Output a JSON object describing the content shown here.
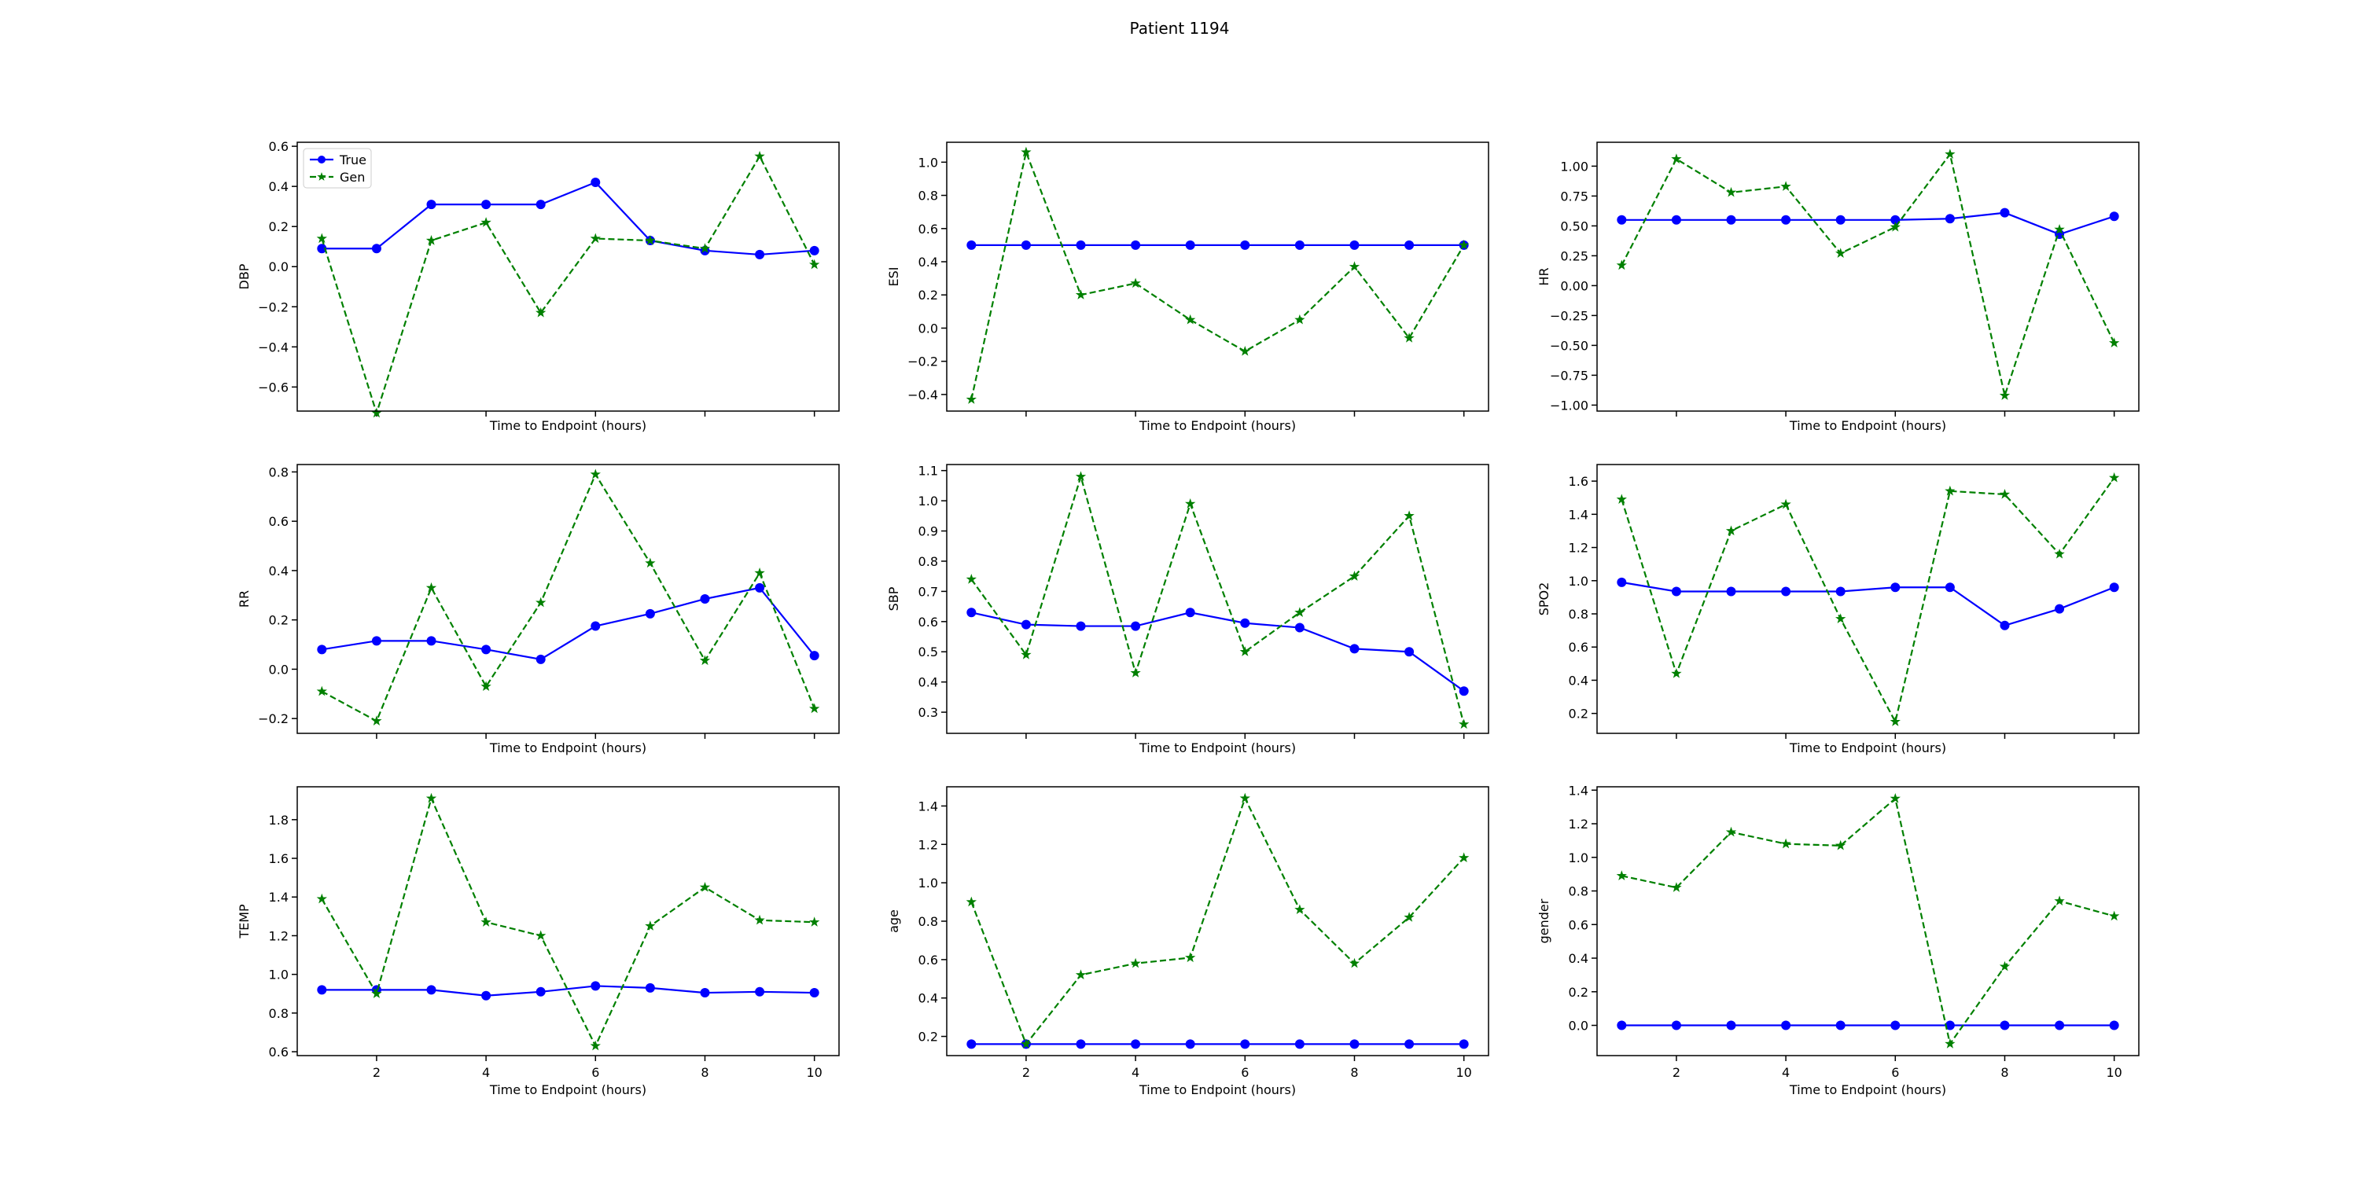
{
  "figure": {
    "title": "Patient 1194"
  },
  "chart_data": [
    {
      "type": "line",
      "ylabel": "DBP",
      "xlabel": "Time to Endpoint (hours)",
      "x": [
        1,
        2,
        3,
        4,
        5,
        6,
        7,
        8,
        9,
        10
      ],
      "xticks": [
        "2",
        "4",
        "6",
        "8",
        "10"
      ],
      "yticks": [
        "−0.6",
        "−0.4",
        "−0.2",
        "0.0",
        "0.2",
        "0.4",
        "0.6"
      ],
      "ylim": [
        -0.72,
        0.62
      ],
      "legend": {
        "position": "top-left",
        "entries": [
          "True",
          "Gen"
        ]
      },
      "series": [
        {
          "name": "True",
          "color": "#0000ff",
          "values": [
            0.09,
            0.09,
            0.31,
            0.31,
            0.31,
            0.42,
            0.13,
            0.08,
            0.06,
            0.08
          ]
        },
        {
          "name": "Gen",
          "color": "#008000",
          "values": [
            0.14,
            -0.73,
            0.13,
            0.22,
            -0.23,
            0.14,
            0.13,
            0.09,
            0.55,
            0.01
          ]
        }
      ]
    },
    {
      "type": "line",
      "ylabel": "ESI",
      "xlabel": "Time to Endpoint (hours)",
      "x": [
        1,
        2,
        3,
        4,
        5,
        6,
        7,
        8,
        9,
        10
      ],
      "xticks": [
        "2",
        "4",
        "6",
        "8",
        "10"
      ],
      "yticks": [
        "−0.4",
        "−0.2",
        "0.0",
        "0.2",
        "0.4",
        "0.6",
        "0.8",
        "1.0"
      ],
      "ylim": [
        -0.5,
        1.12
      ],
      "series": [
        {
          "name": "True",
          "color": "#0000ff",
          "values": [
            0.5,
            0.5,
            0.5,
            0.5,
            0.5,
            0.5,
            0.5,
            0.5,
            0.5,
            0.5
          ]
        },
        {
          "name": "Gen",
          "color": "#008000",
          "values": [
            -0.43,
            1.06,
            0.2,
            0.27,
            0.05,
            -0.14,
            0.05,
            0.37,
            -0.06,
            0.5
          ]
        }
      ]
    },
    {
      "type": "line",
      "ylabel": "HR",
      "xlabel": "Time to Endpoint (hours)",
      "x": [
        1,
        2,
        3,
        4,
        5,
        6,
        7,
        8,
        9,
        10
      ],
      "xticks": [
        "2",
        "4",
        "6",
        "8",
        "10"
      ],
      "yticks": [
        "−1.00",
        "−0.75",
        "−0.50",
        "−0.25",
        "0.00",
        "0.25",
        "0.50",
        "0.75",
        "1.00"
      ],
      "ylim": [
        -1.05,
        1.2
      ],
      "series": [
        {
          "name": "True",
          "color": "#0000ff",
          "values": [
            0.55,
            0.55,
            0.55,
            0.55,
            0.55,
            0.55,
            0.56,
            0.61,
            0.43,
            0.58
          ]
        },
        {
          "name": "Gen",
          "color": "#008000",
          "values": [
            0.17,
            1.06,
            0.78,
            0.83,
            0.27,
            0.49,
            1.1,
            -0.92,
            0.47,
            -0.48
          ]
        }
      ]
    },
    {
      "type": "line",
      "ylabel": "RR",
      "xlabel": "Time to Endpoint (hours)",
      "x": [
        1,
        2,
        3,
        4,
        5,
        6,
        7,
        8,
        9,
        10
      ],
      "xticks": [
        "2",
        "4",
        "6",
        "8",
        "10"
      ],
      "yticks": [
        "−0.2",
        "0.0",
        "0.2",
        "0.4",
        "0.6",
        "0.8"
      ],
      "ylim": [
        -0.26,
        0.83
      ],
      "series": [
        {
          "name": "True",
          "color": "#0000ff",
          "values": [
            0.08,
            0.115,
            0.115,
            0.08,
            0.04,
            0.175,
            0.225,
            0.285,
            0.33,
            0.055
          ]
        },
        {
          "name": "Gen",
          "color": "#008000",
          "values": [
            -0.09,
            -0.21,
            0.33,
            -0.07,
            0.27,
            0.79,
            0.43,
            0.035,
            0.39,
            -0.16
          ]
        }
      ]
    },
    {
      "type": "line",
      "ylabel": "SBP",
      "xlabel": "Time to Endpoint (hours)",
      "x": [
        1,
        2,
        3,
        4,
        5,
        6,
        7,
        8,
        9,
        10
      ],
      "xticks": [
        "2",
        "4",
        "6",
        "8",
        "10"
      ],
      "yticks": [
        "0.3",
        "0.4",
        "0.5",
        "0.6",
        "0.7",
        "0.8",
        "0.9",
        "1.0",
        "1.1"
      ],
      "ylim": [
        0.23,
        1.12
      ],
      "series": [
        {
          "name": "True",
          "color": "#0000ff",
          "values": [
            0.63,
            0.59,
            0.585,
            0.585,
            0.63,
            0.595,
            0.58,
            0.51,
            0.5,
            0.37
          ]
        },
        {
          "name": "Gen",
          "color": "#008000",
          "values": [
            0.74,
            0.49,
            1.08,
            0.43,
            0.99,
            0.5,
            0.63,
            0.75,
            0.95,
            0.26
          ]
        }
      ]
    },
    {
      "type": "line",
      "ylabel": "SPO2",
      "xlabel": "Time to Endpoint (hours)",
      "x": [
        1,
        2,
        3,
        4,
        5,
        6,
        7,
        8,
        9,
        10
      ],
      "xticks": [
        "2",
        "4",
        "6",
        "8",
        "10"
      ],
      "yticks": [
        "0.2",
        "0.4",
        "0.6",
        "0.8",
        "1.0",
        "1.2",
        "1.4",
        "1.6"
      ],
      "ylim": [
        0.08,
        1.7
      ],
      "series": [
        {
          "name": "True",
          "color": "#0000ff",
          "values": [
            0.99,
            0.935,
            0.935,
            0.935,
            0.935,
            0.96,
            0.96,
            0.73,
            0.83,
            0.96
          ]
        },
        {
          "name": "Gen",
          "color": "#008000",
          "values": [
            1.49,
            0.44,
            1.3,
            1.46,
            0.77,
            0.15,
            1.54,
            1.52,
            1.16,
            1.62
          ]
        }
      ]
    },
    {
      "type": "line",
      "ylabel": "TEMP",
      "xlabel": "Time to Endpoint (hours)",
      "x": [
        1,
        2,
        3,
        4,
        5,
        6,
        7,
        8,
        9,
        10
      ],
      "xticks": [
        "2",
        "4",
        "6",
        "8",
        "10"
      ],
      "yticks": [
        "0.6",
        "0.8",
        "1.0",
        "1.2",
        "1.4",
        "1.6",
        "1.8"
      ],
      "ylim": [
        0.58,
        1.97
      ],
      "series": [
        {
          "name": "True",
          "color": "#0000ff",
          "values": [
            0.92,
            0.92,
            0.92,
            0.89,
            0.91,
            0.94,
            0.93,
            0.905,
            0.91,
            0.905
          ]
        },
        {
          "name": "Gen",
          "color": "#008000",
          "values": [
            1.39,
            0.9,
            1.91,
            1.27,
            1.2,
            0.63,
            1.25,
            1.45,
            1.28,
            1.27
          ]
        }
      ]
    },
    {
      "type": "line",
      "ylabel": "age",
      "xlabel": "Time to Endpoint (hours)",
      "x": [
        1,
        2,
        3,
        4,
        5,
        6,
        7,
        8,
        9,
        10
      ],
      "xticks": [
        "2",
        "4",
        "6",
        "8",
        "10"
      ],
      "yticks": [
        "0.2",
        "0.4",
        "0.6",
        "0.8",
        "1.0",
        "1.2",
        "1.4"
      ],
      "ylim": [
        0.1,
        1.5
      ],
      "series": [
        {
          "name": "True",
          "color": "#0000ff",
          "values": [
            0.16,
            0.16,
            0.16,
            0.16,
            0.16,
            0.16,
            0.16,
            0.16,
            0.16,
            0.16
          ]
        },
        {
          "name": "Gen",
          "color": "#008000",
          "values": [
            0.9,
            0.16,
            0.52,
            0.58,
            0.61,
            1.44,
            0.86,
            0.58,
            0.82,
            1.13
          ]
        }
      ]
    },
    {
      "type": "line",
      "ylabel": "gender",
      "xlabel": "Time to Endpoint (hours)",
      "x": [
        1,
        2,
        3,
        4,
        5,
        6,
        7,
        8,
        9,
        10
      ],
      "xticks": [
        "2",
        "4",
        "6",
        "8",
        "10"
      ],
      "yticks": [
        "0.0",
        "0.2",
        "0.4",
        "0.6",
        "0.8",
        "1.0",
        "1.2",
        "1.4"
      ],
      "ylim": [
        -0.18,
        1.42
      ],
      "series": [
        {
          "name": "True",
          "color": "#0000ff",
          "values": [
            0,
            0,
            0,
            0,
            0,
            0,
            0,
            0,
            0,
            0
          ]
        },
        {
          "name": "Gen",
          "color": "#008000",
          "values": [
            0.89,
            0.82,
            1.15,
            1.08,
            1.07,
            1.35,
            -0.11,
            0.35,
            0.74,
            0.65
          ]
        }
      ]
    }
  ]
}
